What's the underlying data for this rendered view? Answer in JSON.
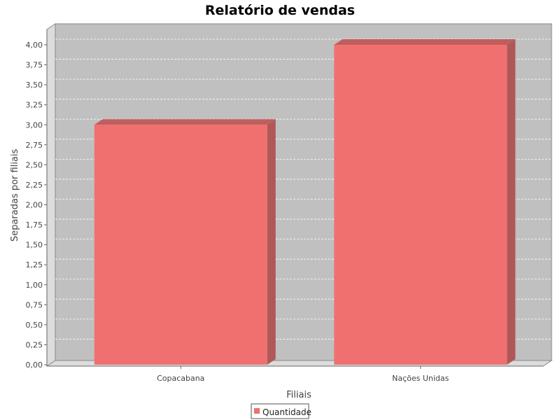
{
  "chart_data": {
    "type": "bar",
    "title": "Relatório de vendas",
    "xlabel": "Filiais",
    "ylabel": "Separadas por filiais",
    "categories": [
      "Copacabana",
      "Nações Unidas"
    ],
    "series": [
      {
        "name": "Quantidade",
        "values": [
          3,
          4
        ],
        "color": "#ff6b6b"
      }
    ],
    "ylim": [
      0,
      4.2
    ],
    "yticks": [
      "0,00",
      "0,25",
      "0,50",
      "0,75",
      "1,00",
      "1,25",
      "1,50",
      "1,75",
      "2,00",
      "2,25",
      "2,50",
      "2,75",
      "3,00",
      "3,25",
      "3,50",
      "3,75",
      "4,00"
    ],
    "grid": true,
    "legend_position": "bottom",
    "style": {
      "plot_background": "#c0c0c0",
      "wall_color": "#d8d8d8",
      "bar_color": "#f07070",
      "bar_side_color": "#b05858",
      "bar_top_color": "#c05e5e",
      "bar_bottom_color": "#f47a7a"
    }
  }
}
